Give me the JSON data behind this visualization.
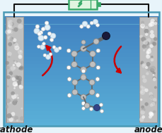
{
  "figsize": [
    2.3,
    1.89
  ],
  "dpi": 100,
  "bg_top_color": "#e8f4fa",
  "bg_water_color": "#5ab0d8",
  "bg_water_light": "#7dc4e8",
  "electrode_color": "#c0c0c0",
  "electrode_outline": "#999999",
  "wire_color": "#111111",
  "battery_outline": "#3aaa6a",
  "battery_fill": "#3aaa6a",
  "battery_bg": "#e0f5e0",
  "arrow_color": "#cc0000",
  "text_cathode": "cathode",
  "text_anode": "anode",
  "text_color": "#111111",
  "font_size_label": 8.5,
  "border_color": "#4a9ab5",
  "atom_gray": "#c0c0c0",
  "atom_dark": "#1a1a3a",
  "atom_white": "#f0f0f0",
  "atom_blue": "#334488",
  "bond_color": "#666666"
}
